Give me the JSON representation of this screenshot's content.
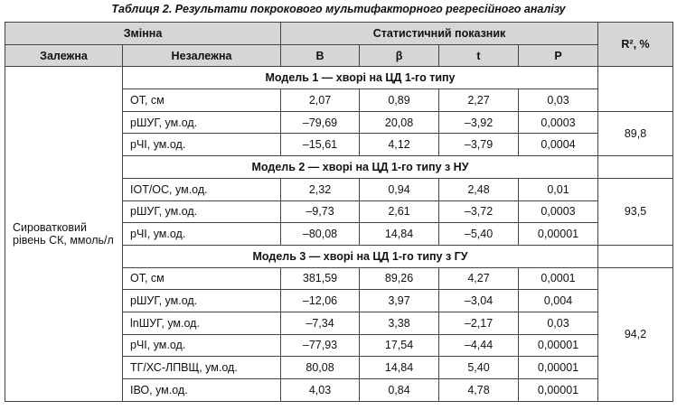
{
  "title": "Таблиця 2. Результати покрокового мультифакторного регресійного аналізу",
  "header": {
    "variable": "Змінна",
    "statistic": "Статистичний показник",
    "r2": "R², %",
    "dependent": "Залежна",
    "independent": "Незалежна",
    "columns": [
      "B",
      "β",
      "t",
      "P"
    ]
  },
  "dependent_value": "Сироватковий рівень СК, ммоль/л",
  "models": [
    {
      "title": "Модель 1 — хворі на ЦД 1-го типу",
      "r2": "89,8",
      "rows": [
        [
          "ОТ, см",
          "2,07",
          "0,89",
          "2,27",
          "0,03"
        ],
        [
          "рШУГ, ум.од.",
          "–79,69",
          "20,08",
          "–3,92",
          "0,0003"
        ],
        [
          "рЧІ, ум.од.",
          "–15,61",
          "4,12",
          "–3,79",
          "0,0004"
        ]
      ]
    },
    {
      "title": "Модель 2 — хворі на ЦД 1-го типу з НУ",
      "r2": "93,5",
      "rows": [
        [
          "ІОТ/ОС, ум.од.",
          "2,32",
          "0,94",
          "2,48",
          "0,01"
        ],
        [
          "рШУГ, ум.од.",
          "–9,73",
          "2,61",
          "–3,72",
          "0,0003"
        ],
        [
          "рЧІ, ум.од.",
          "–80,08",
          "14,84",
          "–5,40",
          "0,00001"
        ]
      ]
    },
    {
      "title": "Модель 3 — хворі на ЦД 1-го типу з ГУ",
      "r2": "94,2",
      "rows": [
        [
          "ОТ, см",
          "381,59",
          "89,26",
          "4,27",
          "0,0001"
        ],
        [
          "рШУГ, ум.од.",
          "–12,06",
          "3,97",
          "–3,04",
          "0,004"
        ],
        [
          "lnШУГ, ум.од.",
          "–7,34",
          "3,38",
          "–2,17",
          "0,03"
        ],
        [
          "рЧІ, ум.од.",
          "–77,93",
          "17,54",
          "–4,44",
          "0,00001"
        ],
        [
          "ТГ/ХС-ЛПВЩ, ум.од.",
          "80,08",
          "14,84",
          "5,40",
          "0,00001"
        ],
        [
          "ІВО, ум.од.",
          "4,03",
          "0,84",
          "4,78",
          "0,00001"
        ]
      ]
    }
  ]
}
